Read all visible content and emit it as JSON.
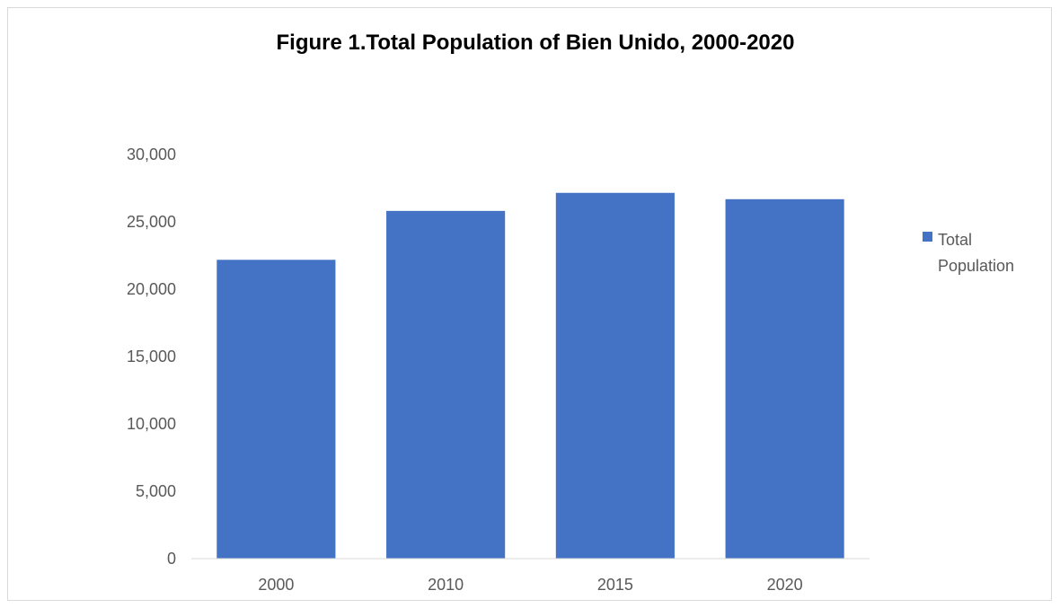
{
  "chart_data": {
    "type": "bar",
    "title": "Figure 1.Total Population of Bien Unido, 2000-2020",
    "categories": [
      "2000",
      "2010",
      "2015",
      "2020"
    ],
    "series": [
      {
        "name": "Total Population",
        "values": [
          22180,
          25810,
          27150,
          26680
        ],
        "color": "#4472c4"
      }
    ],
    "ylim": [
      0,
      30000
    ],
    "yticks": [
      0,
      5000,
      10000,
      15000,
      20000,
      25000,
      30000
    ],
    "ytick_labels": [
      "0",
      "5,000",
      "10,000",
      "15,000",
      "20,000",
      "25,000",
      "30,000"
    ],
    "legend_position": "right",
    "legend_lines": [
      "Total",
      "Population"
    ],
    "grid": false,
    "xlabel": "",
    "ylabel": ""
  }
}
